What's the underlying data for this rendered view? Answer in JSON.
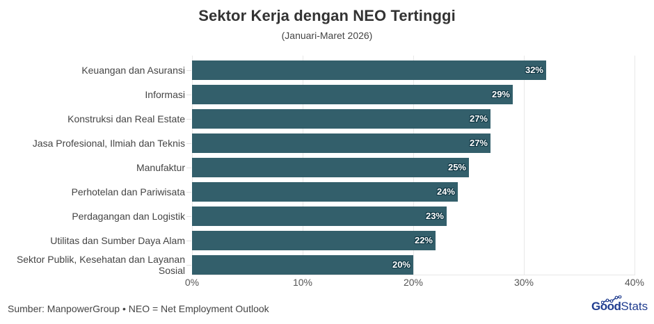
{
  "title": "Sektor Kerja dengan NEO Tertinggi",
  "subtitle": "(Januari-Maret 2026)",
  "footer": "Sumber: ManpowerGroup • NEO = Net Employment Outlook",
  "logo": {
    "part1": "Good",
    "part2": "Stats"
  },
  "colors": {
    "bar": "#335f6b",
    "label_outline": "#0d3340",
    "logo": "#1f3c8f"
  },
  "x_ticks": [
    "0%",
    "10%",
    "20%",
    "30%",
    "40%"
  ],
  "bars": [
    {
      "category": "Keuangan dan Asuransi",
      "value": 32,
      "label": "32%"
    },
    {
      "category": "Informasi",
      "value": 29,
      "label": "29%"
    },
    {
      "category": "Konstruksi dan Real Estate",
      "value": 27,
      "label": "27%"
    },
    {
      "category": "Jasa Profesional, Ilmiah dan Teknis",
      "value": 27,
      "label": "27%"
    },
    {
      "category": "Manufaktur",
      "value": 25,
      "label": "25%"
    },
    {
      "category": "Perhotelan dan Pariwisata",
      "value": 24,
      "label": "24%"
    },
    {
      "category": "Perdagangan dan Logistik",
      "value": 23,
      "label": "23%"
    },
    {
      "category": "Utilitas dan Sumber Daya Alam",
      "value": 22,
      "label": "22%"
    },
    {
      "category": "Sektor Publik, Kesehatan dan Layanan Sosial",
      "value": 20,
      "label": "20%"
    }
  ],
  "chart_data": {
    "type": "bar",
    "orientation": "horizontal",
    "title": "Sektor Kerja dengan NEO Tertinggi",
    "subtitle": "(Januari-Maret 2026)",
    "categories": [
      "Keuangan dan Asuransi",
      "Informasi",
      "Konstruksi dan Real Estate",
      "Jasa Profesional, Ilmiah dan Teknis",
      "Manufaktur",
      "Perhotelan dan Pariwisata",
      "Perdagangan dan Logistik",
      "Utilitas dan Sumber Daya Alam",
      "Sektor Publik, Kesehatan dan Layanan Sosial"
    ],
    "values": [
      32,
      29,
      27,
      27,
      25,
      24,
      23,
      22,
      20
    ],
    "unit": "%",
    "xlabel": "",
    "ylabel": "",
    "xlim": [
      0,
      40
    ],
    "x_ticks": [
      "0%",
      "10%",
      "20%",
      "30%",
      "40%"
    ],
    "grid": "vertical",
    "legend": "none",
    "data_labels": true,
    "source": "Sumber: ManpowerGroup • NEO = Net Employment Outlook"
  }
}
